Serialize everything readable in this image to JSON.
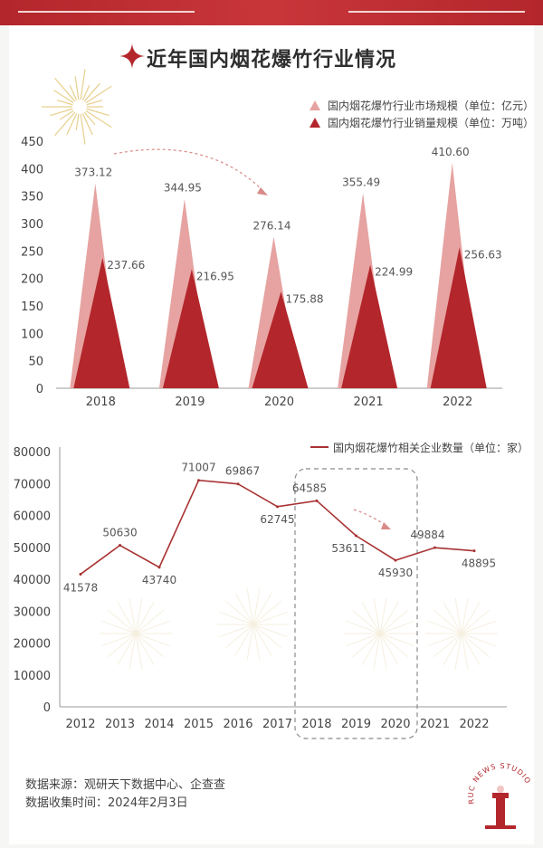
{
  "page": {
    "title": "近年国内烟花爆竹行业情况",
    "source_line": "数据来源：观研天下数据中心、企查查",
    "date_line": "数据收集时间：2024年2月3日",
    "badge_text": "RUC NEWS STUDIO"
  },
  "colors": {
    "accent": "#b3262b",
    "light_series": "#e6a3a1",
    "dark_series": "#b3262b",
    "line_series": "#a83232"
  },
  "chart_data": [
    {
      "type": "area",
      "categories": [
        "2018",
        "2019",
        "2020",
        "2021",
        "2022"
      ],
      "series": [
        {
          "name": "国内烟花爆竹行业市场规模（单位：亿元）",
          "values": [
            373.12,
            344.95,
            276.14,
            355.49,
            410.6
          ],
          "labels": [
            "373.12",
            "344.95",
            "276.14",
            "355.49",
            "410.60"
          ]
        },
        {
          "name": "国内烟花爆竹行业销量规模（单位：万吨）",
          "values": [
            237.66,
            216.95,
            175.88,
            224.99,
            256.63
          ],
          "labels": [
            "237.66",
            "216.95",
            "175.88",
            "224.99",
            "256.63"
          ]
        }
      ],
      "yticks": [
        "0",
        "50",
        "100",
        "150",
        "200",
        "250",
        "300",
        "350",
        "400",
        "450"
      ],
      "ylim": [
        0,
        450
      ],
      "grid": false,
      "legend": "top-right"
    },
    {
      "type": "line",
      "categories": [
        "2012",
        "2013",
        "2014",
        "2015",
        "2016",
        "2017",
        "2018",
        "2019",
        "2020",
        "2021",
        "2022"
      ],
      "series": [
        {
          "name": "国内烟花爆竹相关企业数量（单位：家）",
          "values": [
            41578,
            50630,
            43740,
            71007,
            69867,
            62745,
            64585,
            53611,
            45930,
            49884,
            48895
          ],
          "labels": [
            "41578",
            "50630",
            "43740",
            "71007",
            "69867",
            "62745",
            "64585",
            "53611",
            "45930",
            "49884",
            "48895"
          ]
        }
      ],
      "yticks": [
        "0",
        "10000",
        "20000",
        "30000",
        "40000",
        "50000",
        "60000",
        "70000",
        "80000"
      ],
      "ylim": [
        0,
        80000
      ],
      "grid": false,
      "legend": "top-right",
      "highlight": {
        "from": "2018",
        "to": "2020"
      }
    }
  ]
}
